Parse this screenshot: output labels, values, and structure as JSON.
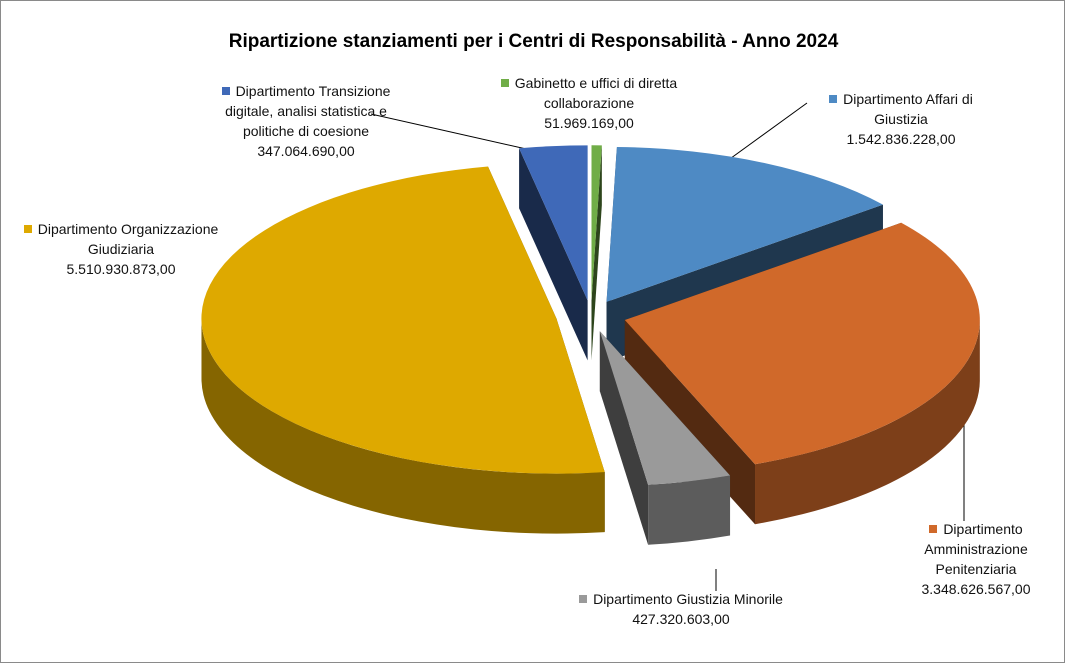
{
  "chart_data": {
    "type": "pie",
    "title": "Ripartizione stanziamenti per i Centri di Responsabilità - Anno 2024",
    "categories": [
      "Gabinetto e uffici di diretta collaborazione",
      "Dipartimento Affari di Giustizia",
      "Dipartimento Amministrazione Penitenziaria",
      "Dipartimento Giustizia Minorile",
      "Dipartimento Organizzazione Giudiziaria",
      "Dipartimento Transizione digitale, analisi statistica e politiche di coesione"
    ],
    "values": [
      51969169,
      1542836228,
      3348626567,
      427320603,
      5510930873,
      347064690
    ],
    "value_labels": [
      "51.969.169,00",
      "1.542.836.228,00",
      "3.348.626.567,00",
      "427.320.603,00",
      "5.510.930.873,00",
      "347.064.690,00"
    ],
    "colors": [
      "#70ad47",
      "#4e8ac4",
      "#d0692a",
      "#9a9a9a",
      "#dea900",
      "#3f69b8"
    ]
  }
}
